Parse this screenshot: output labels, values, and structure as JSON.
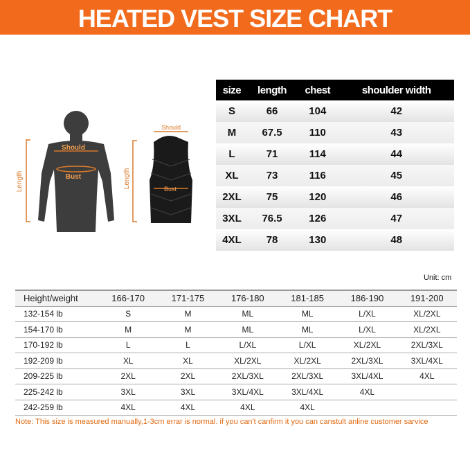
{
  "header": {
    "title": "HEATED VEST SIZE CHART"
  },
  "figures": {
    "body_shoulder": "Should",
    "body_bust": "Bust",
    "body_length": "Length",
    "vest_shoulder": "Should",
    "vest_length": "Length",
    "vest_bust": "Bust"
  },
  "size_table": {
    "header": [
      "size",
      "length",
      "chest",
      "shoulder width"
    ],
    "rows": [
      [
        "S",
        "66",
        "104",
        "42"
      ],
      [
        "M",
        "67.5",
        "110",
        "43"
      ],
      [
        "L",
        "71",
        "114",
        "44"
      ],
      [
        "XL",
        "73",
        "116",
        "45"
      ],
      [
        "2XL",
        "75",
        "120",
        "46"
      ],
      [
        "3XL",
        "76.5",
        "126",
        "47"
      ],
      [
        "4XL",
        "78",
        "130",
        "48"
      ]
    ]
  },
  "unit": "Unit: cm",
  "fit_table": {
    "header": [
      "Height/weight",
      "166-170",
      "171-175",
      "176-180",
      "181-185",
      "186-190",
      "191-200"
    ],
    "rows": [
      [
        "132-154 lb",
        "S",
        "M",
        "ML",
        "ML",
        "L/XL",
        "XL/2XL"
      ],
      [
        "154-170 lb",
        "M",
        "M",
        "ML",
        "ML",
        "L/XL",
        "XL/2XL"
      ],
      [
        "170-192 lb",
        "L",
        "L",
        "L/XL",
        "L/XL",
        "XL/2XL",
        "2XL/3XL"
      ],
      [
        "192-209 lb",
        "XL",
        "XL",
        "XL/2XL",
        "XL/2XL",
        "2XL/3XL",
        "3XL/4XL"
      ],
      [
        "209-225 lb",
        "2XL",
        "2XL",
        "2XL/3XL",
        "2XL/3XL",
        "3XL/4XL",
        "4XL"
      ],
      [
        "225-242 lb",
        "3XL",
        "3XL",
        "3XL/4XL",
        "3XL/4XL",
        "4XL",
        null
      ],
      [
        "242-259 lb",
        "4XL",
        "4XL",
        "4XL",
        "4XL",
        null,
        null
      ]
    ]
  },
  "note": "Note: This size is measured manually,1-3cm errar is normal. if you can't canfirm it you can canstult anline customer sarvice"
}
